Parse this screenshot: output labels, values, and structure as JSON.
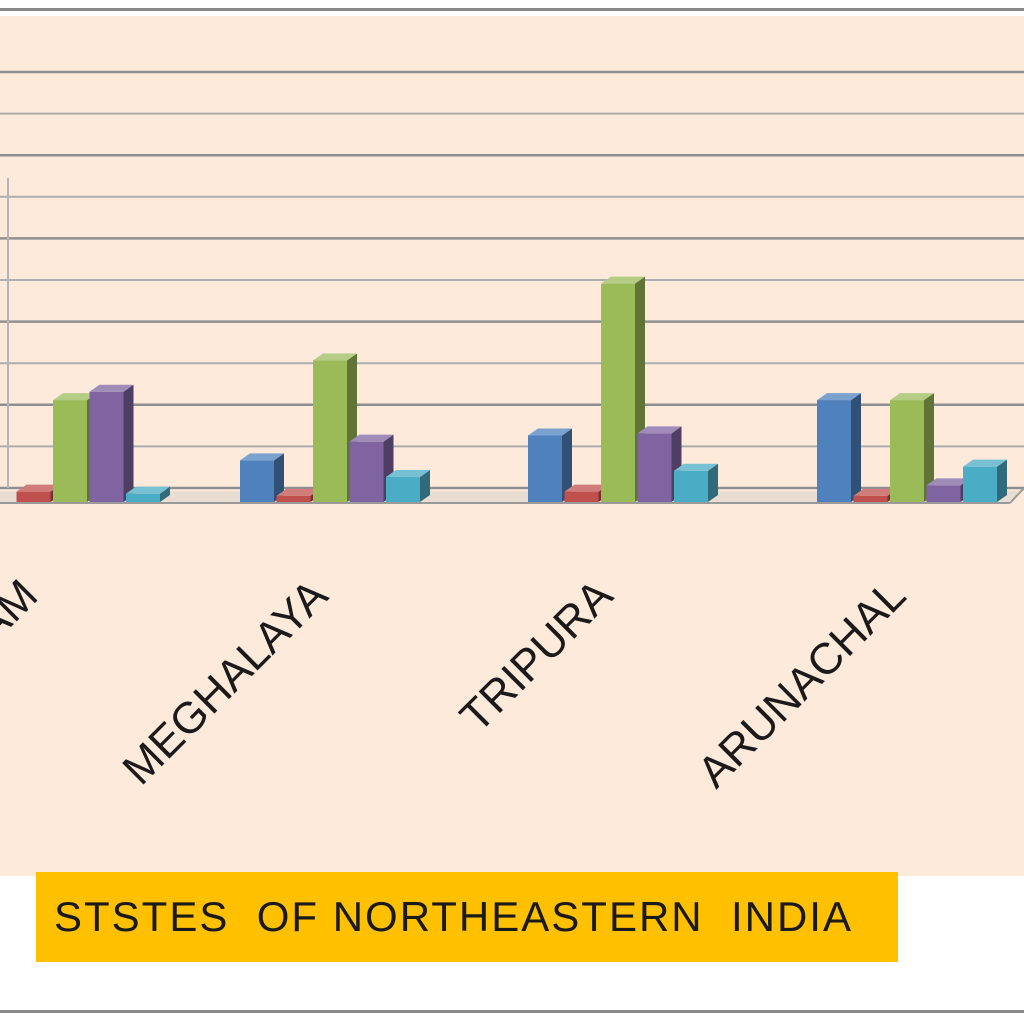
{
  "chart_data": {
    "type": "bar",
    "title": "",
    "xlabel": "STSTES  OF NORTHEASTERN  INDIA",
    "ylabel": "",
    "grid": true,
    "categories": [
      "MIZORAM",
      "MEGHALAYA",
      "TRIPURA",
      "ARUNACHAL"
    ],
    "category_labels_visible": [
      "RAM",
      "MEGHALAYA",
      "TRIPURA",
      "ARUNACHAL"
    ],
    "ylim": [
      0,
      21
    ],
    "series": [
      {
        "values": [
          0.0,
          2.0,
          3.2,
          4.9
        ],
        "color": "#4f81bd"
      },
      {
        "values": [
          0.5,
          0.3,
          0.5,
          0.3
        ],
        "color": "#c0504d"
      },
      {
        "values": [
          4.9,
          6.8,
          10.5,
          4.9
        ],
        "color": "#9bbb59"
      },
      {
        "values": [
          5.3,
          2.9,
          3.3,
          0.8
        ],
        "color": "#8064a2"
      },
      {
        "values": [
          0.4,
          1.2,
          1.5,
          1.7
        ],
        "color": "#4bacc6"
      }
    ]
  }
}
